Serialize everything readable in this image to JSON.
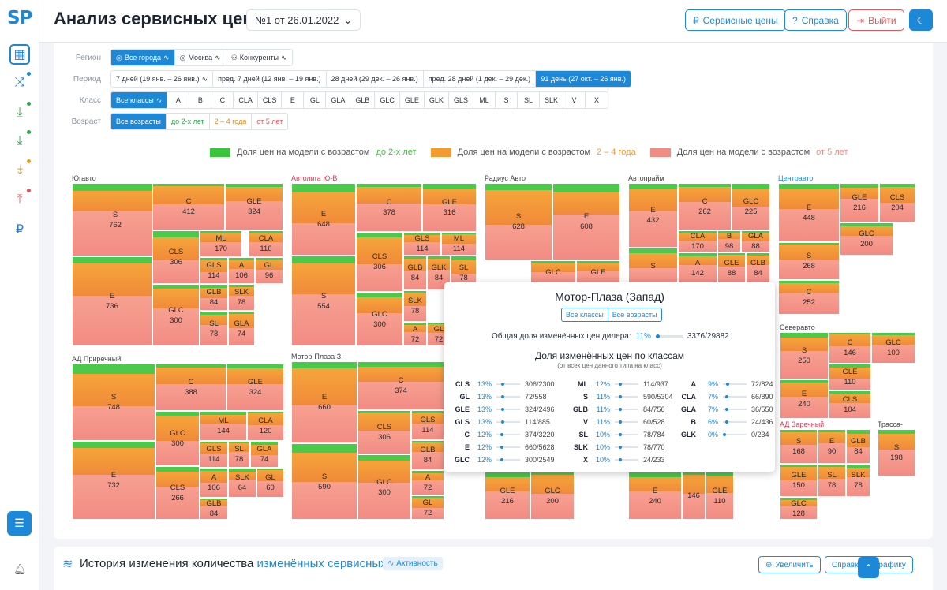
{
  "app": {
    "logo": "SP",
    "title": "Анализ сервисных цен",
    "doc": "№1 от 26.01.2022"
  },
  "header": {
    "prices_btn": "Сервисные цены",
    "help_btn": "Справка",
    "logout_btn": "Выйти"
  },
  "filters": {
    "region_label": "Регион",
    "region": [
      "Все города",
      "Москва",
      "Конкуренты"
    ],
    "period_label": "Период",
    "period": [
      "7 дней (19 янв. – 26 янв.)",
      "пред. 7 дней (12 янв. – 19 янв.)",
      "28 дней (29 дек. – 26 янв.)",
      "пред. 28 дней (1 дек. – 29 дек.)",
      "91 день (27 окт. – 26 янв.)"
    ],
    "class_label": "Класс",
    "classes": [
      "Все классы",
      "A",
      "B",
      "C",
      "CLA",
      "CLS",
      "E",
      "GL",
      "GLA",
      "GLB",
      "GLC",
      "GLE",
      "GLK",
      "GLS",
      "ML",
      "S",
      "SL",
      "SLK",
      "V",
      "X"
    ],
    "age_label": "Возраст",
    "ages": [
      "Все возрасты",
      "до 2-х лет",
      "2 – 4 года",
      "от 5 лет"
    ]
  },
  "legend": {
    "prefix": "Доля цен на модели с возрастом",
    "items": [
      {
        "label": "до 2-х лет",
        "color": "#3cc43c"
      },
      {
        "label": "2 – 4 года",
        "color": "#f59a2e"
      },
      {
        "label": "от 5 лет",
        "color": "#f28b84"
      }
    ]
  },
  "dealers": [
    {
      "name": "Югавто",
      "cells": [
        [
          "S",
          "762"
        ],
        [
          "C",
          "412"
        ],
        [
          "GLE",
          "324"
        ],
        [
          "CLS",
          "306"
        ],
        [
          "ML",
          "170"
        ],
        [
          "CLA",
          "116"
        ],
        [
          "GLS",
          "114"
        ],
        [
          "A",
          "106"
        ],
        [
          "GL",
          "96"
        ],
        [
          "E",
          "736"
        ],
        [
          "GLC",
          "300"
        ],
        [
          "GLB",
          "84"
        ],
        [
          "SLK",
          "78"
        ],
        [
          "SL",
          "78"
        ],
        [
          "GLA",
          "74"
        ]
      ]
    },
    {
      "name": "Автолига Ю-В",
      "cells": [
        [
          "E",
          "648"
        ],
        [
          "C",
          "378"
        ],
        [
          "GLE",
          "316"
        ],
        [
          "CLS",
          "306"
        ],
        [
          "GLS",
          "114"
        ],
        [
          "ML",
          "114"
        ],
        [
          "GLB",
          "84"
        ],
        [
          "GLK",
          "84"
        ],
        [
          "SL",
          "78"
        ],
        [
          "S",
          "554"
        ],
        [
          "GLC",
          "300"
        ],
        [
          "SLK",
          "78"
        ],
        [
          "A",
          "72"
        ],
        [
          "GL",
          "72"
        ]
      ]
    },
    {
      "name": "Радиус Авто",
      "cells": [
        [
          "S",
          "628"
        ],
        [
          "E",
          "608"
        ],
        [
          "GLC",
          ""
        ],
        [
          "GLE",
          ""
        ],
        [
          "GLE",
          "216"
        ],
        [
          "GLC",
          "200"
        ]
      ]
    },
    {
      "name": "Автопрайм",
      "cells": [
        [
          "E",
          "432"
        ],
        [
          "C",
          "262"
        ],
        [
          "GLC",
          "225"
        ],
        [
          "CLA",
          "170"
        ],
        [
          "B",
          "98"
        ],
        [
          "GLA",
          "88"
        ],
        [
          "A",
          "142"
        ],
        [
          "GLE",
          "88"
        ],
        [
          "GLB",
          "84"
        ],
        [
          "S",
          ""
        ],
        [
          "E",
          "240"
        ],
        [
          "GLE",
          "110"
        ],
        [
          "",
          "146"
        ]
      ]
    },
    {
      "name": "Центравто",
      "cells": [
        [
          "E",
          "448"
        ],
        [
          "GLE",
          "216"
        ],
        [
          "CLS",
          "204"
        ],
        [
          "GLC",
          "200"
        ],
        [
          "S",
          "268"
        ],
        [
          "C",
          "252"
        ]
      ]
    },
    {
      "name": "Северавто",
      "cells": [
        [
          "S",
          "250"
        ],
        [
          "C",
          "146"
        ],
        [
          "GLC",
          "100"
        ],
        [
          "GLE",
          "110"
        ],
        [
          "E",
          "240"
        ],
        [
          "CLS",
          "104"
        ]
      ]
    },
    {
      "name": "АД Приречный",
      "cells": [
        [
          "S",
          "748"
        ],
        [
          "C",
          "388"
        ],
        [
          "GLE",
          "324"
        ],
        [
          "GLC",
          "300"
        ],
        [
          "ML",
          "144"
        ],
        [
          "CLA",
          "120"
        ],
        [
          "GLS",
          "114"
        ],
        [
          "SL",
          "78"
        ],
        [
          "GLA",
          "74"
        ],
        [
          "E",
          "732"
        ],
        [
          "CLS",
          "266"
        ],
        [
          "A",
          "106"
        ],
        [
          "SLK",
          "64"
        ],
        [
          "GL",
          "60"
        ],
        [
          "GLB",
          "84"
        ]
      ]
    },
    {
      "name": "Мотор-Плаза З.",
      "cells": [
        [
          "E",
          "660"
        ],
        [
          "C",
          "374"
        ],
        [
          "CLS",
          "306"
        ],
        [
          "GLS",
          "114"
        ],
        [
          "GLB",
          "84"
        ],
        [
          "S",
          "590"
        ],
        [
          "GLC",
          "300"
        ],
        [
          "A",
          "72"
        ],
        [
          "GL",
          "72"
        ]
      ]
    },
    {
      "name": "АД Заречный",
      "cells": [
        [
          "S",
          "168"
        ],
        [
          "E",
          "90"
        ],
        [
          "GLB",
          "84"
        ],
        [
          "SL",
          "78"
        ],
        [
          "SLK",
          "78"
        ],
        [
          "GLE",
          "150"
        ],
        [
          "GLC",
          "128"
        ]
      ]
    },
    {
      "name": "Трасса-Мот",
      "cells": [
        [
          "S",
          "198"
        ]
      ]
    }
  ],
  "tooltip": {
    "title": "Мотор-Плаза (Запад)",
    "chip_classes": "Все классы",
    "chip_ages": "Все возрасты",
    "total_label": "Общая доля изменённых цен дилера:",
    "total_pct": "11%",
    "total_val": "3376/29882",
    "classes_title": "Доля изменённых цен по классам",
    "classes_sub": "(от всех цен данного типа на класс)",
    "col1": [
      [
        "CLS",
        "13%",
        "306/2300"
      ],
      [
        "GL",
        "13%",
        "72/558"
      ],
      [
        "GLE",
        "13%",
        "324/2496"
      ],
      [
        "GLS",
        "13%",
        "114/885"
      ],
      [
        "C",
        "12%",
        "374/3220"
      ],
      [
        "E",
        "12%",
        "660/5628"
      ],
      [
        "GLC",
        "12%",
        "300/2549"
      ]
    ],
    "col2": [
      [
        "ML",
        "12%",
        "114/937"
      ],
      [
        "S",
        "11%",
        "590/5304"
      ],
      [
        "GLB",
        "11%",
        "84/756"
      ],
      [
        "V",
        "11%",
        "60/528"
      ],
      [
        "SL",
        "10%",
        "78/784"
      ],
      [
        "SLK",
        "10%",
        "78/770"
      ],
      [
        "X",
        "10%",
        "24/233"
      ]
    ],
    "col3": [
      [
        "A",
        "9%",
        "72/824"
      ],
      [
        "CLA",
        "7%",
        "66/890"
      ],
      [
        "GLA",
        "7%",
        "36/550"
      ],
      [
        "B",
        "6%",
        "24/436"
      ],
      [
        "GLK",
        "0%",
        "0/234"
      ]
    ]
  },
  "history": {
    "title_a": "История изменения количества",
    "title_b": "изменённых сервисных цен",
    "badge": "Активность",
    "zoom": "Увеличить",
    "help": "Справка по графику"
  }
}
